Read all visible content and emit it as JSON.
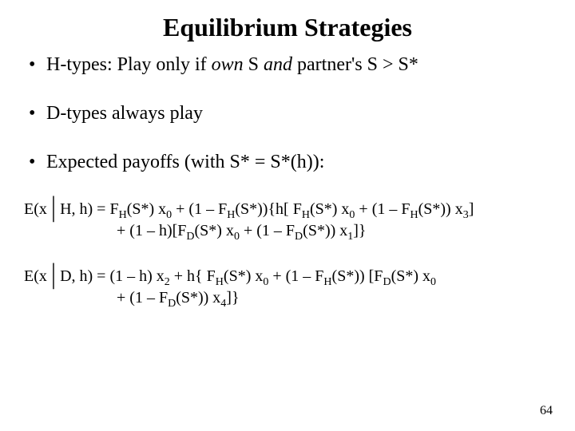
{
  "title": "Equilibrium Strategies",
  "bullets": {
    "b1_a": "H-types: Play only if ",
    "b1_b_italic": "own",
    "b1_c": " S ",
    "b1_d_italic": "and",
    "b1_e": " partner's S > S*",
    "b2": "D-types always play",
    "b3": "Expected payoffs (with S* = S*(h)):"
  },
  "eq1": {
    "prefix": "E(x",
    "bar": "│",
    "cond": "H, h) = F",
    "H1": "H",
    "p1": "(S*) x",
    "s0a": "0",
    "p2": " + (1 – F",
    "H2": "H",
    "p3": "(S*)){h[ F",
    "H3": "H",
    "p4": "(S*) x",
    "s0b": "0",
    "p5": " + (1 – F",
    "H4": "H",
    "p6": "(S*)) x",
    "s3": "3",
    "p7": "]",
    "l2a": "+ (1 – h)[F",
    "D1": "D",
    "l2b": "(S*) x",
    "s0c": "0",
    "l2c": " + (1 – F",
    "D2": "D",
    "l2d": "(S*)) x",
    "s1": "1",
    "l2e": "]}"
  },
  "eq2": {
    "prefix": "E(x",
    "bar": "│",
    "cond": "D, h) = (1 – h) x",
    "s2": "2",
    "p1": " + h{ F",
    "H1": "H",
    "p2": "(S*) x",
    "s0a": "0",
    "p3": " + (1 – F",
    "H2": "H",
    "p4": "(S*)) [F",
    "D1": "D",
    "p5": "(S*) x",
    "s0b": "0",
    "l2a": "+ (1 – F",
    "D2": "D",
    "l2b": "(S*)) x",
    "s4": "4",
    "l2c": "]}"
  },
  "page": "64"
}
